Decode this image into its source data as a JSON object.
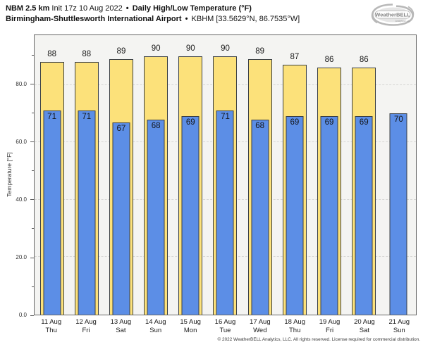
{
  "header": {
    "model": "NBM 2.5 km",
    "init": "Init 17z 10 Aug 2022",
    "sep": "•",
    "product": "Daily High/Low Temperature (°F)",
    "station": "Birmingham-Shuttlesworth International Airport",
    "station_id": "KBHM [33.5629°N, 86.7535°W]"
  },
  "logo": {
    "brand": "WeatherBELL",
    "sub": "Analytics LLC"
  },
  "chart_data": {
    "type": "bar",
    "title": "NBM 2.5 km Init 17z 10 Aug 2022 • Daily High/Low Temperature (°F)",
    "subtitle": "Birmingham-Shuttlesworth International Airport • KBHM [33.5629°N, 86.7535°W]",
    "categories": [
      {
        "date": "11 Aug",
        "day": "Thu"
      },
      {
        "date": "12 Aug",
        "day": "Fri"
      },
      {
        "date": "13 Aug",
        "day": "Sat"
      },
      {
        "date": "14 Aug",
        "day": "Sun"
      },
      {
        "date": "15 Aug",
        "day": "Mon"
      },
      {
        "date": "16 Aug",
        "day": "Tue"
      },
      {
        "date": "17 Aug",
        "day": "Wed"
      },
      {
        "date": "18 Aug",
        "day": "Thu"
      },
      {
        "date": "19 Aug",
        "day": "Fri"
      },
      {
        "date": "20 Aug",
        "day": "Sat"
      },
      {
        "date": "21 Aug",
        "day": "Sun"
      }
    ],
    "series": [
      {
        "name": "Daily High",
        "color": "#fce17a",
        "border": "#3a3f44",
        "values": [
          88,
          88,
          89,
          90,
          90,
          90,
          89,
          87,
          86,
          86,
          null
        ]
      },
      {
        "name": "Daily Low",
        "color": "#5c8ee6",
        "border": "#3a3f44",
        "values": [
          71,
          71,
          67,
          68,
          69,
          71,
          68,
          69,
          69,
          69,
          70
        ]
      }
    ],
    "ylabel": "Temperature [°F]",
    "yticks": [
      0,
      20,
      40,
      60,
      80
    ],
    "ytick_labels": [
      "0.0",
      "20.0",
      "40.0",
      "60.0",
      "80.0"
    ],
    "minor_yticks": [
      10,
      30,
      50,
      70,
      90
    ],
    "ylim": [
      0,
      97.3
    ],
    "grid": {
      "horizontal_dashed_at": [
        20,
        40,
        60,
        80
      ]
    },
    "legend": "none",
    "plot_bg": "#f4f4f2"
  },
  "footer": {
    "copyright": "© 2022 WeatherBELL Analytics, LLC. All rights reserved. License required for commercial distribution."
  }
}
